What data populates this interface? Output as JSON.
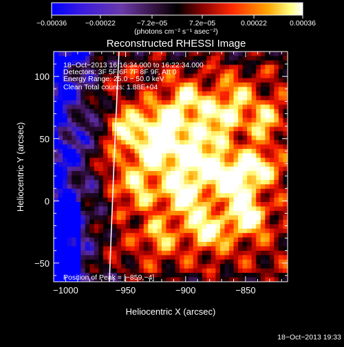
{
  "chart_data": {
    "type": "heatmap",
    "title": "Reconstructed RHESSI Image",
    "xlabel": "Heliocentric X (arcsec)",
    "ylabel": "Heliocentric Y (arcsec)",
    "xlim": [
      -1010,
      -815
    ],
    "ylim": [
      -65,
      120
    ],
    "x_ticks": [
      -1000,
      -950,
      -900,
      -850
    ],
    "x_tick_labels": [
      "−1000",
      "−950",
      "−900",
      "−850"
    ],
    "y_ticks": [
      -50,
      0,
      50,
      100
    ],
    "y_tick_labels": [
      "−50",
      "0",
      "50",
      "100"
    ],
    "colorbar": {
      "range": [
        -0.00036,
        0.00036
      ],
      "ticks": [
        -0.00036,
        -0.00022,
        -7.2e-05,
        7.2e-05,
        0.00022,
        0.00036
      ],
      "tick_labels": [
        "−0.00036",
        "−0.00022",
        "−7.2e−05",
        "7.2e−05",
        "0.00022",
        "0.00036"
      ],
      "unit_label": "(photons cm⁻² s⁻¹ asec⁻²)"
    },
    "annotations": [
      "18−Oct−2013 16:16:34.000 to 16:22:34.000",
      "Detectors: 3F 5F 6F 7F 8F 9F, Att 0",
      "Energy Range: 25.0 − 50.0 keV",
      "Clean    Total counts: 1.88E+04"
    ],
    "peak_text": "Position of Peak = [−859,−4]",
    "limb_color": "#ffffff",
    "grid": false,
    "colormap": [
      "#0000ff",
      "#5a2aa0",
      "#2a0a30",
      "#000000",
      "#a00000",
      "#ff2000",
      "#ffa000",
      "#ffff80",
      "#ffffff"
    ]
  },
  "footer": {
    "timestamp": "18−Oct−2013 19:33"
  }
}
